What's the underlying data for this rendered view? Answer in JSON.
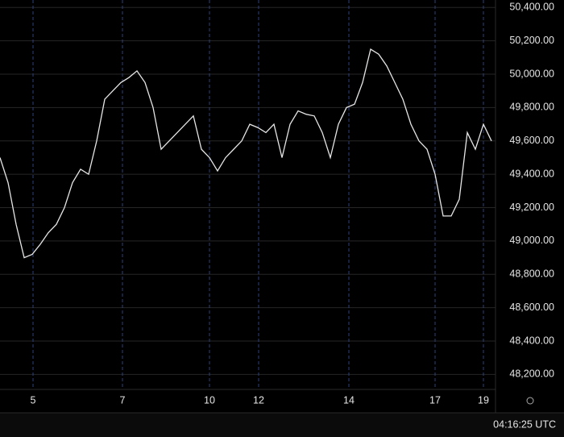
{
  "chart_data": {
    "type": "line",
    "x": [
      0,
      1,
      2,
      3,
      4,
      5,
      6,
      7,
      8,
      9,
      10,
      11,
      12,
      13,
      14,
      15,
      16,
      17,
      18,
      19,
      20,
      21,
      22,
      23,
      24,
      25,
      26,
      27,
      28,
      29,
      30,
      31,
      32,
      33,
      34,
      35,
      36,
      37,
      38,
      39,
      40,
      41,
      42,
      43,
      44,
      45,
      46,
      47,
      48,
      49,
      50,
      51,
      52,
      53,
      54,
      55,
      56,
      57,
      58,
      59,
      60,
      61
    ],
    "series": [
      {
        "color": "#e6e6e6",
        "values": [
          49500,
          49350,
          49100,
          48900,
          48920,
          48980,
          49050,
          49100,
          49200,
          49350,
          49430,
          49400,
          49600,
          49850,
          49900,
          49950,
          49980,
          50020,
          49950,
          49800,
          49550,
          49600,
          49650,
          49700,
          49750,
          49550,
          49500,
          49420,
          49500,
          49550,
          49600,
          49700,
          49680,
          49650,
          49700,
          49500,
          49700,
          49780,
          49760,
          49750,
          49650,
          49500,
          49700,
          49800,
          49820,
          49950,
          50150,
          50120,
          50050,
          49950,
          49850,
          49700,
          49600,
          49550,
          49400,
          49150,
          49150,
          49250,
          49650,
          49550,
          49700,
          49600
        ]
      }
    ],
    "xlim": [
      0,
      62
    ],
    "xticks": [
      {
        "value": 4.1,
        "label": "5"
      },
      {
        "value": 15.2,
        "label": "7"
      },
      {
        "value": 26,
        "label": "10"
      },
      {
        "value": 32.1,
        "label": "12"
      },
      {
        "value": 43.3,
        "label": "14"
      },
      {
        "value": 54,
        "label": "17"
      },
      {
        "value": 60,
        "label": "19"
      }
    ],
    "ylim": [
      48110,
      50445
    ],
    "yticks": [
      {
        "value": 48200,
        "label": "48,200.00"
      },
      {
        "value": 48400,
        "label": "48,400.00"
      },
      {
        "value": 48600,
        "label": "48,600.00"
      },
      {
        "value": 48800,
        "label": "48,800.00"
      },
      {
        "value": 49000,
        "label": "49,000.00"
      },
      {
        "value": 49200,
        "label": "49,200.00"
      },
      {
        "value": 49400,
        "label": "49,400.00"
      },
      {
        "value": 49600,
        "label": "49,600.00"
      },
      {
        "value": 49800,
        "label": "49,800.00"
      },
      {
        "value": 50000,
        "label": "50,000.00"
      },
      {
        "value": 50200,
        "label": "50,200.00"
      },
      {
        "value": 50400,
        "label": "50,400.00"
      }
    ],
    "grid": true,
    "clock": "04:16:25 UTC"
  }
}
